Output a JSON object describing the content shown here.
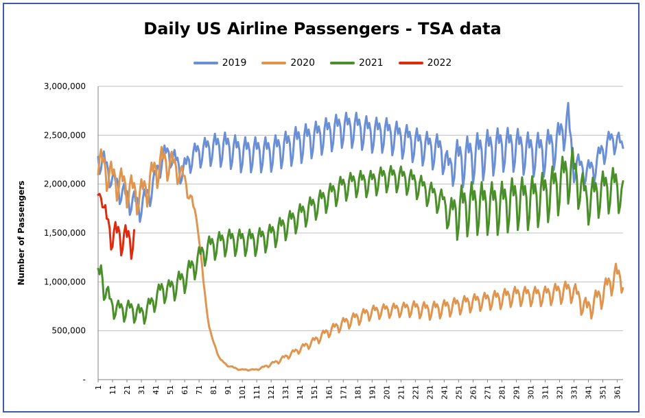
{
  "chart_data": {
    "type": "line",
    "title": "Daily US Airline Passengers - TSA data",
    "ylabel": "Number of Passengers",
    "xlabel": "",
    "xlim": [
      1,
      365
    ],
    "ylim": [
      0,
      3000000
    ],
    "y_ticks": [
      {
        "value": 0,
        "label": "-"
      },
      {
        "value": 500000,
        "label": "500,000"
      },
      {
        "value": 1000000,
        "label": "1,000,000"
      },
      {
        "value": 1500000,
        "label": "1,500,000"
      },
      {
        "value": 2000000,
        "label": "2,000,000"
      },
      {
        "value": 2500000,
        "label": "2,500,000"
      },
      {
        "value": 3000000,
        "label": "3,000,000"
      }
    ],
    "x_ticks": [
      "1",
      "11",
      "21",
      "31",
      "41",
      "51",
      "61",
      "71",
      "81",
      "91",
      "101",
      "111",
      "121",
      "131",
      "141",
      "151",
      "161",
      "171",
      "181",
      "191",
      "201",
      "211",
      "221",
      "231",
      "241",
      "251",
      "261",
      "271",
      "281",
      "291",
      "301",
      "311",
      "321",
      "331",
      "341",
      "351",
      "361"
    ],
    "grid": "horizontal",
    "legend_position": "top",
    "series": [
      {
        "name": "2019",
        "color": "#6a8fd4",
        "x": [
          1,
          5,
          10,
          15,
          20,
          25,
          30,
          35,
          40,
          45,
          50,
          55,
          60,
          65,
          70,
          80,
          90,
          100,
          110,
          120,
          130,
          140,
          150,
          160,
          170,
          180,
          190,
          200,
          210,
          220,
          230,
          240,
          244,
          250,
          260,
          270,
          280,
          290,
          300,
          310,
          320,
          327,
          330,
          335,
          340,
          345,
          350,
          355,
          360,
          365
        ],
        "y": [
          2250000,
          2200000,
          2050000,
          1950000,
          1850000,
          1800000,
          1750000,
          1850000,
          2000000,
          2250000,
          2300000,
          2200000,
          2100000,
          2250000,
          2300000,
          2350000,
          2350000,
          2300000,
          2300000,
          2300000,
          2350000,
          2400000,
          2450000,
          2500000,
          2550000,
          2550000,
          2500000,
          2500000,
          2450000,
          2400000,
          2350000,
          2300000,
          2150000,
          2200000,
          2250000,
          2300000,
          2350000,
          2350000,
          2300000,
          2300000,
          2400000,
          2650000,
          2200000,
          2150000,
          2100000,
          2150000,
          2300000,
          2400000,
          2450000,
          2350000
        ],
        "amp": [
          150000,
          150000,
          120000,
          150000,
          150000,
          150000,
          150000,
          150000,
          150000,
          150000,
          120000,
          150000,
          150000,
          150000,
          150000,
          180000,
          200000,
          200000,
          200000,
          200000,
          200000,
          220000,
          200000,
          200000,
          200000,
          200000,
          200000,
          200000,
          200000,
          200000,
          200000,
          220000,
          150000,
          280000,
          280000,
          280000,
          250000,
          250000,
          250000,
          250000,
          250000,
          200000,
          200000,
          150000,
          150000,
          150000,
          150000,
          150000,
          150000,
          100000
        ]
      },
      {
        "name": "2020",
        "color": "#e0954f",
        "x": [
          1,
          5,
          10,
          15,
          20,
          25,
          30,
          35,
          40,
          45,
          50,
          55,
          60,
          63,
          66,
          70,
          72,
          74,
          76,
          78,
          80,
          83,
          86,
          90,
          95,
          100,
          105,
          110,
          115,
          120,
          125,
          130,
          140,
          150,
          160,
          170,
          180,
          190,
          200,
          210,
          220,
          230,
          240,
          250,
          260,
          270,
          280,
          290,
          300,
          310,
          320,
          330,
          340,
          350,
          355,
          360,
          365
        ],
        "y": [
          2200000,
          2150000,
          2050000,
          2000000,
          1950000,
          1900000,
          1850000,
          1950000,
          2100000,
          2200000,
          2200000,
          2150000,
          2050000,
          1950000,
          1800000,
          1600000,
          1300000,
          1000000,
          750000,
          550000,
          420000,
          300000,
          200000,
          150000,
          120000,
          100000,
          100000,
          100000,
          120000,
          150000,
          180000,
          220000,
          300000,
          380000,
          480000,
          560000,
          620000,
          680000,
          700000,
          710000,
          720000,
          700000,
          720000,
          750000,
          780000,
          800000,
          820000,
          850000,
          850000,
          850000,
          880000,
          900000,
          700000,
          850000,
          950000,
          1050000,
          1000000
        ],
        "amp": [
          200000,
          200000,
          200000,
          200000,
          200000,
          200000,
          200000,
          200000,
          200000,
          200000,
          180000,
          150000,
          120000,
          100000,
          80000,
          60000,
          40000,
          30000,
          20000,
          20000,
          15000,
          15000,
          10000,
          10000,
          10000,
          8000,
          8000,
          8000,
          15000,
          20000,
          25000,
          30000,
          40000,
          50000,
          60000,
          70000,
          80000,
          80000,
          80000,
          80000,
          90000,
          100000,
          100000,
          100000,
          100000,
          100000,
          110000,
          110000,
          110000,
          110000,
          120000,
          130000,
          130000,
          140000,
          140000,
          150000,
          130000
        ]
      },
      {
        "name": "2021",
        "color": "#4a8f2a",
        "x": [
          1,
          3,
          5,
          10,
          15,
          20,
          25,
          30,
          35,
          40,
          45,
          50,
          55,
          60,
          65,
          70,
          75,
          80,
          90,
          100,
          110,
          120,
          130,
          140,
          150,
          160,
          170,
          180,
          190,
          200,
          210,
          220,
          230,
          240,
          245,
          250,
          260,
          270,
          280,
          290,
          300,
          310,
          320,
          325,
          330,
          335,
          340,
          350,
          360,
          365
        ],
        "y": [
          1000000,
          1050000,
          950000,
          750000,
          700000,
          700000,
          700000,
          650000,
          700000,
          800000,
          900000,
          900000,
          950000,
          1000000,
          1100000,
          1200000,
          1300000,
          1350000,
          1400000,
          1400000,
          1400000,
          1450000,
          1550000,
          1650000,
          1750000,
          1850000,
          1950000,
          2000000,
          2000000,
          2050000,
          2050000,
          2000000,
          1900000,
          1800000,
          1650000,
          1700000,
          1750000,
          1750000,
          1750000,
          1800000,
          1800000,
          1850000,
          1950000,
          2050000,
          2100000,
          1950000,
          1800000,
          1900000,
          1950000,
          1850000
        ],
        "amp": [
          150000,
          200000,
          150000,
          120000,
          120000,
          120000,
          120000,
          120000,
          120000,
          120000,
          130000,
          130000,
          150000,
          150000,
          150000,
          150000,
          150000,
          150000,
          150000,
          150000,
          150000,
          150000,
          150000,
          150000,
          150000,
          150000,
          150000,
          150000,
          150000,
          150000,
          150000,
          150000,
          150000,
          150000,
          200000,
          300000,
          300000,
          300000,
          300000,
          300000,
          300000,
          300000,
          300000,
          300000,
          300000,
          250000,
          250000,
          250000,
          250000,
          200000
        ]
      },
      {
        "name": "2022",
        "color": "#e02a0e",
        "x": [
          1,
          3,
          5,
          8,
          11,
          14,
          17,
          20,
          23,
          26
        ],
        "y": [
          1800000,
          1950000,
          1700000,
          1550000,
          1450000,
          1450000,
          1450000,
          1400000,
          1400000,
          1450000
        ],
        "amp": [
          150000,
          100000,
          150000,
          150000,
          180000,
          180000,
          200000,
          200000,
          200000,
          200000
        ]
      }
    ]
  }
}
